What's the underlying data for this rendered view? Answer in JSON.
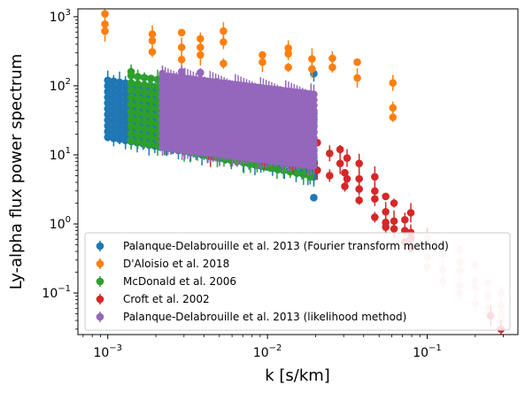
{
  "chart_data": {
    "type": "scatter",
    "title": "",
    "xlabel": "k [s/km]",
    "ylabel": "Ly-alpha flux power spectrum",
    "xscale": "log",
    "yscale": "log",
    "xlim": [
      0.00065,
      0.37
    ],
    "ylim": [
      0.025,
      1300
    ],
    "x_ticks": [
      {
        "value": 0.001,
        "base": "10",
        "exp": "−3"
      },
      {
        "value": 0.01,
        "base": "10",
        "exp": "−2"
      },
      {
        "value": 0.1,
        "base": "10",
        "exp": "−1"
      }
    ],
    "y_ticks": [
      {
        "value": 0.1,
        "base": "10",
        "exp": "−1"
      },
      {
        "value": 1,
        "base": "10",
        "exp": "0"
      },
      {
        "value": 10,
        "base": "10",
        "exp": "1"
      },
      {
        "value": 100,
        "base": "10",
        "exp": "2"
      },
      {
        "value": 1000,
        "base": "10",
        "exp": "3"
      }
    ],
    "legend_position": "lower-right",
    "series": [
      {
        "name": "Palanque-Delabrouille et al. 2013 (Fourier transform method)",
        "color": "#1f77b4",
        "alpha": 1,
        "kmin": 0.001,
        "kmax": 0.0195,
        "ncols": 36,
        "ytop_lo": 120,
        "ytop_hi": 40,
        "ybot_lo": 18,
        "ybot_hi": 5,
        "rows": 11,
        "points": [
          [
            0.0195,
            2.4
          ],
          [
            0.0195,
            4.8
          ],
          [
            0.0195,
            150
          ]
        ]
      },
      {
        "name": "D'Aloisio et al. 2018",
        "color": "#ff7f0e",
        "alpha": 1,
        "points": [
          [
            0.00096,
            1100
          ],
          [
            0.00096,
            780
          ],
          [
            0.00096,
            620
          ],
          [
            0.0019,
            560
          ],
          [
            0.0019,
            450
          ],
          [
            0.0019,
            310
          ],
          [
            0.0029,
            590
          ],
          [
            0.0029,
            360
          ],
          [
            0.0029,
            240
          ],
          [
            0.0038,
            480
          ],
          [
            0.0038,
            360
          ],
          [
            0.0038,
            280
          ],
          [
            0.0053,
            620
          ],
          [
            0.0053,
            430
          ],
          [
            0.0053,
            210
          ],
          [
            0.0093,
            280
          ],
          [
            0.0093,
            220
          ],
          [
            0.0135,
            350
          ],
          [
            0.0135,
            290
          ],
          [
            0.0135,
            185
          ],
          [
            0.019,
            245
          ],
          [
            0.019,
            175
          ],
          [
            0.0255,
            250
          ],
          [
            0.0255,
            185
          ],
          [
            0.0365,
            220
          ],
          [
            0.0365,
            130
          ],
          [
            0.061,
            110
          ],
          [
            0.061,
            48
          ],
          [
            0.061,
            35
          ]
        ]
      },
      {
        "name": "McDonald et al. 2006",
        "color": "#2ca02c",
        "alpha": 1,
        "kmin": 0.0014,
        "kmax": 0.0185,
        "ncols": 28,
        "ytop_lo": 140,
        "ytop_hi": 60,
        "ybot_lo": 16,
        "ybot_hi": 5,
        "rows": 10,
        "points": [
          [
            0.0014,
            160
          ],
          [
            0.0185,
            4.8
          ]
        ]
      },
      {
        "name": "Croft et al. 2002",
        "color": "#d62728",
        "alpha": 1,
        "points": [
          [
            0.0022,
            45
          ],
          [
            0.0022,
            16
          ],
          [
            0.0029,
            45
          ],
          [
            0.0029,
            17
          ],
          [
            0.0044,
            55
          ],
          [
            0.0044,
            9.5
          ],
          [
            0.0055,
            40
          ],
          [
            0.0055,
            25
          ],
          [
            0.0075,
            55
          ],
          [
            0.0075,
            30
          ],
          [
            0.0095,
            30
          ],
          [
            0.0095,
            8
          ],
          [
            0.0125,
            55
          ],
          [
            0.0125,
            8
          ],
          [
            0.0145,
            40
          ],
          [
            0.0145,
            7
          ],
          [
            0.018,
            20
          ],
          [
            0.018,
            10
          ],
          [
            0.0205,
            15
          ],
          [
            0.0205,
            6
          ],
          [
            0.0245,
            10.5
          ],
          [
            0.0245,
            5
          ],
          [
            0.0285,
            12
          ],
          [
            0.0285,
            7.5
          ],
          [
            0.0315,
            9
          ],
          [
            0.0315,
            4.5
          ],
          [
            0.0305,
            3.5
          ],
          [
            0.0305,
            5.5
          ],
          [
            0.0375,
            7.5
          ],
          [
            0.0375,
            4.5
          ],
          [
            0.0375,
            3.2
          ],
          [
            0.0375,
            2.2
          ],
          [
            0.047,
            4.8
          ],
          [
            0.047,
            3.0
          ],
          [
            0.047,
            2.3
          ],
          [
            0.047,
            1.25
          ],
          [
            0.055,
            2.5
          ],
          [
            0.055,
            1.5
          ],
          [
            0.055,
            1.05
          ],
          [
            0.055,
            0.9
          ],
          [
            0.062,
            2.0
          ],
          [
            0.062,
            1.1
          ],
          [
            0.062,
            0.85
          ],
          [
            0.0725,
            1.15
          ],
          [
            0.0725,
            0.8
          ],
          [
            0.0725,
            0.55
          ],
          [
            0.079,
            1.45
          ],
          [
            0.079,
            0.75
          ],
          [
            0.079,
            0.62
          ],
          [
            0.079,
            0.45
          ],
          [
            0.25,
            0.047
          ],
          [
            0.29,
            0.03
          ]
        ]
      },
      {
        "name": "D'Aloisio et al. 2018",
        "color": "#d62728",
        "alpha": 0.25,
        "legend": false,
        "points": [
          [
            0.08,
            0.6
          ],
          [
            0.08,
            0.48
          ],
          [
            0.1,
            0.62
          ],
          [
            0.1,
            0.33
          ],
          [
            0.1,
            0.24
          ],
          [
            0.125,
            0.52
          ],
          [
            0.125,
            0.37
          ],
          [
            0.125,
            0.22
          ],
          [
            0.125,
            0.15
          ],
          [
            0.16,
            0.42
          ],
          [
            0.16,
            0.28
          ],
          [
            0.16,
            0.21
          ],
          [
            0.16,
            0.13
          ],
          [
            0.16,
            0.1
          ],
          [
            0.2,
            0.25
          ],
          [
            0.2,
            0.15
          ],
          [
            0.2,
            0.12
          ],
          [
            0.2,
            0.07
          ],
          [
            0.24,
            0.14
          ],
          [
            0.24,
            0.09
          ],
          [
            0.24,
            0.06
          ],
          [
            0.24,
            0.05
          ],
          [
            0.29,
            0.1
          ],
          [
            0.29,
            0.065
          ],
          [
            0.29,
            0.05
          ],
          [
            0.29,
            0.04
          ]
        ]
      },
      {
        "name": "Palanque-Delabrouille et al. 2013 (likelihood method)",
        "color": "#9467bd",
        "alpha": 1,
        "kmin": 0.0022,
        "kmax": 0.0195,
        "ncols": 55,
        "ytop_lo": 140,
        "ytop_hi": 75,
        "ybot_lo": 13,
        "ybot_hi": 7,
        "rows": 14,
        "points": [
          [
            0.0022,
            150
          ],
          [
            0.0029,
            160
          ],
          [
            0.0038,
            155
          ]
        ]
      }
    ]
  }
}
